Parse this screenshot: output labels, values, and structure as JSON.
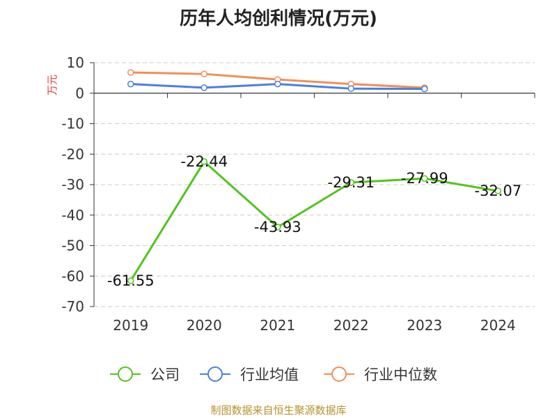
{
  "chart_data": {
    "type": "line",
    "title": "历年人均创利情况(万元)",
    "ylabel": "万元",
    "xlabel": "",
    "categories": [
      "2019",
      "2020",
      "2021",
      "2022",
      "2023",
      "2024"
    ],
    "ylim": [
      -70,
      10
    ],
    "yticks": [
      10,
      0,
      -10,
      -20,
      -30,
      -40,
      -50,
      -60,
      -70
    ],
    "grid": true,
    "legend_position": "bottom",
    "series": [
      {
        "name": "公司",
        "color": "#52c41a",
        "values": [
          -61.55,
          -22.44,
          -43.93,
          -29.31,
          -27.99,
          -32.07
        ],
        "show_labels": true
      },
      {
        "name": "行业均值",
        "color": "#4a7fe0",
        "values": [
          3.0,
          1.8,
          3.0,
          1.5,
          1.4,
          null
        ],
        "show_labels": false
      },
      {
        "name": "行业中位数",
        "color": "#f28e57",
        "values": [
          6.8,
          6.3,
          4.5,
          3.0,
          1.8,
          null
        ],
        "show_labels": false
      }
    ]
  },
  "source": "制图数据来自恒生聚源数据库"
}
